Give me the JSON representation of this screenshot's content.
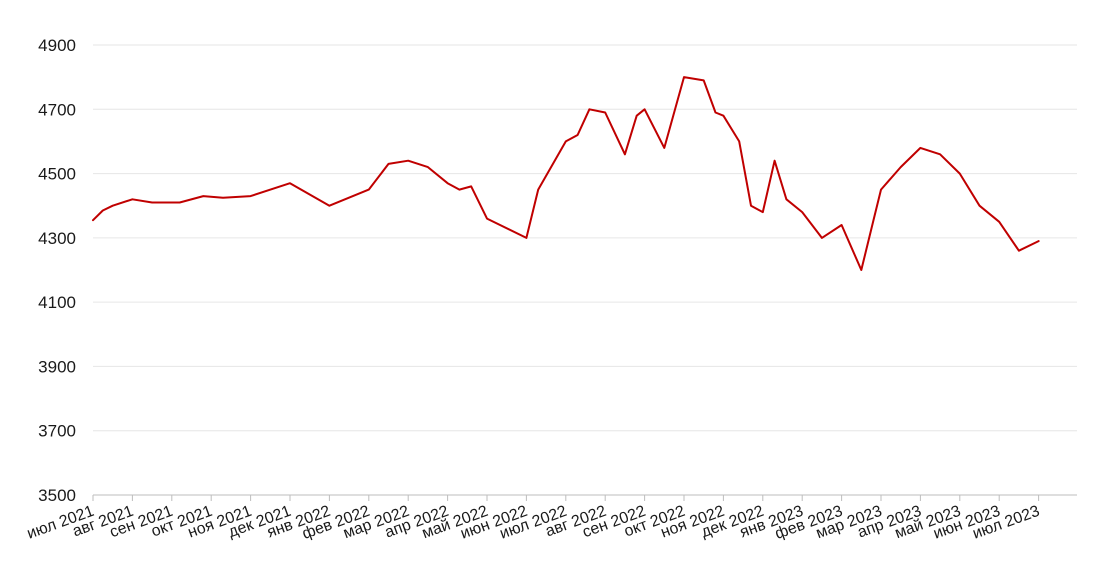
{
  "chart_data": {
    "type": "line",
    "title": "",
    "xlabel": "",
    "ylabel": "",
    "ylim": [
      3500,
      4900
    ],
    "grid": true,
    "y_ticks": [
      "3500",
      "3700",
      "3900",
      "4100",
      "4300",
      "4500",
      "4700",
      "4900"
    ],
    "x_ticks": [
      "июл 2021",
      "авг 2021",
      "сен 2021",
      "окт 2021",
      "ноя 2021",
      "дек 2021",
      "янв 2022",
      "фев 2022",
      "мар 2022",
      "апр 2022",
      "май 2022",
      "июн 2022",
      "июл 2022",
      "авг 2022",
      "сен 2022",
      "окт 2022",
      "ноя 2022",
      "дек 2022",
      "янв 2023",
      "фев 2023",
      "мар 2023",
      "апр 2023",
      "май 2023",
      "июн 2023",
      "июл 2023"
    ],
    "line_color": "#c00000",
    "series": [
      {
        "x": [
          0,
          0.25,
          0.5,
          1,
          1.5,
          2.2,
          2.8,
          3.3,
          4,
          5,
          6,
          7,
          7.5,
          8,
          8.5,
          9,
          9.3,
          9.6,
          10,
          11,
          11.3,
          12,
          12.3,
          12.6,
          13,
          13.5,
          13.8,
          14,
          14.5,
          15,
          15.5,
          15.8,
          16,
          16.4,
          16.7,
          17,
          17.3,
          17.6,
          18,
          18.5,
          19,
          19.5,
          19.8,
          20,
          20.5,
          21,
          21.5,
          22,
          22.5,
          23,
          23.5,
          24
        ],
        "y": [
          4355,
          4385,
          4400,
          4420,
          4410,
          4410,
          4430,
          4425,
          4430,
          4470,
          4400,
          4450,
          4530,
          4540,
          4520,
          4470,
          4450,
          4460,
          4360,
          4300,
          4450,
          4600,
          4620,
          4700,
          4690,
          4560,
          4680,
          4700,
          4580,
          4800,
          4790,
          4690,
          4680,
          4600,
          4400,
          4380,
          4540,
          4420,
          4380,
          4300,
          4340,
          4200,
          4350,
          4450,
          4520,
          4580,
          4560,
          4500,
          4400,
          4350,
          4260,
          4290
        ]
      }
    ]
  }
}
